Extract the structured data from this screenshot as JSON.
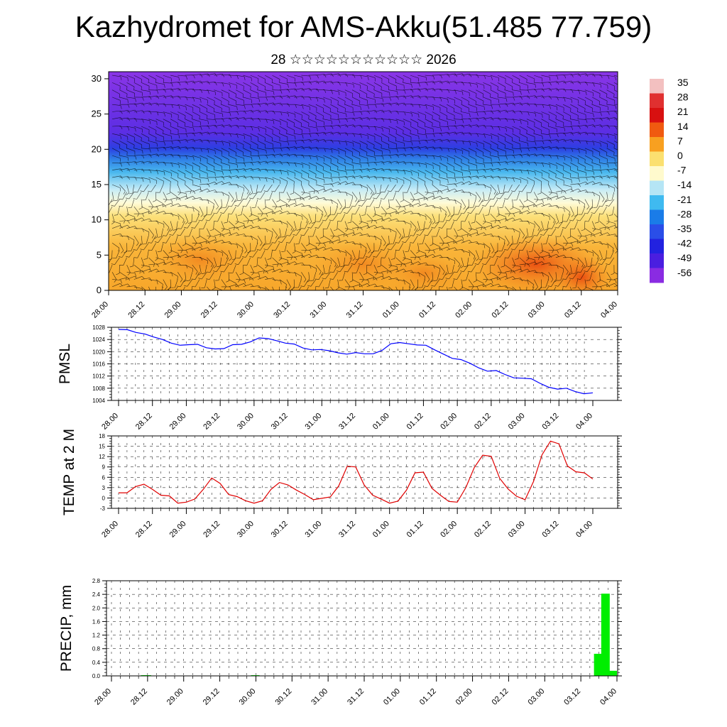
{
  "page": {
    "title": "Kazhydromet for AMS-Akku(51.485 77.759)",
    "subtitle": "28 ☆☆☆☆☆☆☆☆☆☆☆ 2026"
  },
  "chart_data": [
    {
      "id": "cross-section",
      "type": "heatmap",
      "description": "Temperature shading with wind barbs, height (km) vs time",
      "x_tick_labels": [
        "28.00",
        "28.12",
        "29.00",
        "29.12",
        "30.00",
        "30.12",
        "31.00",
        "31.12",
        "01.00",
        "01.12",
        "02.00",
        "02.12",
        "03.00",
        "03.12",
        "04.00"
      ],
      "y_ticks": [
        0,
        5,
        10,
        15,
        20,
        25,
        30
      ],
      "ylim": [
        0,
        31
      ],
      "colorbar": {
        "labels": [
          "35",
          "28",
          "21",
          "14",
          "7",
          "0",
          "-7",
          "-14",
          "-21",
          "-28",
          "-35",
          "-42",
          "-49",
          "-56"
        ],
        "colors": [
          "#f3c0c0",
          "#e03030",
          "#d81010",
          "#f05a10",
          "#f8a020",
          "#fbe070",
          "#fffacd",
          "#b5e5f5",
          "#3fbaf0",
          "#1a7ce8",
          "#2a4ee8",
          "#2222e0",
          "#4a1ee0",
          "#8a2be2"
        ]
      }
    },
    {
      "id": "pmsl",
      "type": "line",
      "ylabel": "PMSL",
      "yticks": [
        1004,
        1008,
        1012,
        1016,
        1020,
        1024,
        1028
      ],
      "ylim": [
        1004,
        1028
      ],
      "x_tick_labels": [
        "28.00",
        "28.12",
        "29.00",
        "29.12",
        "30.00",
        "30.12",
        "31.00",
        "31.12",
        "01.00",
        "01.12",
        "02.00",
        "02.12",
        "03.00",
        "03.12",
        "04.00"
      ],
      "color": "#0000ff",
      "values": [
        1027.3,
        1027.2,
        1026.3,
        1025.8,
        1024.8,
        1024.0,
        1022.8,
        1022.1,
        1022.3,
        1022.4,
        1021.3,
        1020.9,
        1021.0,
        1022.3,
        1022.4,
        1023.2,
        1024.5,
        1024.3,
        1023.6,
        1022.8,
        1022.5,
        1021.2,
        1020.6,
        1020.7,
        1020.3,
        1019.6,
        1019.2,
        1019.7,
        1019.3,
        1019.3,
        1020.4,
        1022.6,
        1023.0,
        1022.6,
        1022.2,
        1022.1,
        1020.6,
        1019.2,
        1017.8,
        1017.4,
        1016.2,
        1014.7,
        1013.6,
        1013.8,
        1012.5,
        1011.4,
        1011.3,
        1011.1,
        1009.6,
        1008.3,
        1007.7,
        1008.0,
        1006.9,
        1006.2,
        1006.5
      ]
    },
    {
      "id": "temp2m",
      "type": "line",
      "ylabel": "TEMP at 2 M",
      "yticks": [
        -3,
        0,
        3,
        6,
        9,
        12,
        15,
        18
      ],
      "ylim": [
        -3,
        18
      ],
      "x_tick_labels": [
        "28.00",
        "28.12",
        "29.00",
        "29.12",
        "30.00",
        "30.12",
        "31.00",
        "31.12",
        "01.00",
        "01.12",
        "02.00",
        "02.12",
        "03.00",
        "03.12",
        "04.00"
      ],
      "color": "#e00000",
      "values": [
        1.5,
        1.5,
        3.3,
        4.0,
        2.5,
        0.8,
        0.6,
        -1.5,
        -1.2,
        -0.3,
        2.5,
        5.8,
        4.2,
        1.0,
        0.4,
        -0.8,
        -1.5,
        -0.8,
        2.5,
        4.5,
        3.8,
        2.3,
        1.0,
        -0.5,
        -0.1,
        0.3,
        3.5,
        9.2,
        9.0,
        3.8,
        0.8,
        -0.3,
        -1.5,
        -0.9,
        2.3,
        7.3,
        7.5,
        2.8,
        0.8,
        -1.0,
        -1.2,
        3.0,
        8.8,
        12.4,
        12.1,
        5.7,
        2.6,
        0.5,
        -0.5,
        4.8,
        12.5,
        16.5,
        15.7,
        9.3,
        7.6,
        7.3,
        5.5
      ]
    },
    {
      "id": "precip",
      "type": "bar",
      "ylabel": "PRECIP, mm",
      "yticks": [
        "0.0",
        "0.4",
        "0.8",
        "1.2",
        "1.6",
        "2.0",
        "2.4",
        "2.8"
      ],
      "ylim": [
        0,
        2.8
      ],
      "x_tick_labels": [
        "28.00",
        "28.12",
        "29.00",
        "29.12",
        "30.00",
        "30.12",
        "31.00",
        "31.12",
        "01.00",
        "01.12",
        "02.00",
        "02.12",
        "03.00",
        "03.12",
        "04.00"
      ],
      "color": "#00ee00",
      "bars": [
        {
          "x": 6.3,
          "value": 0.02
        },
        {
          "x": 6.6,
          "value": 0.02
        },
        {
          "x": 6.9,
          "value": 0.01
        },
        {
          "x": 24.6,
          "value": 0.02
        },
        {
          "x": 81.6,
          "value": 0.65
        },
        {
          "x": 82.8,
          "value": 2.42
        },
        {
          "x": 84.0,
          "value": 0.15
        }
      ]
    }
  ]
}
